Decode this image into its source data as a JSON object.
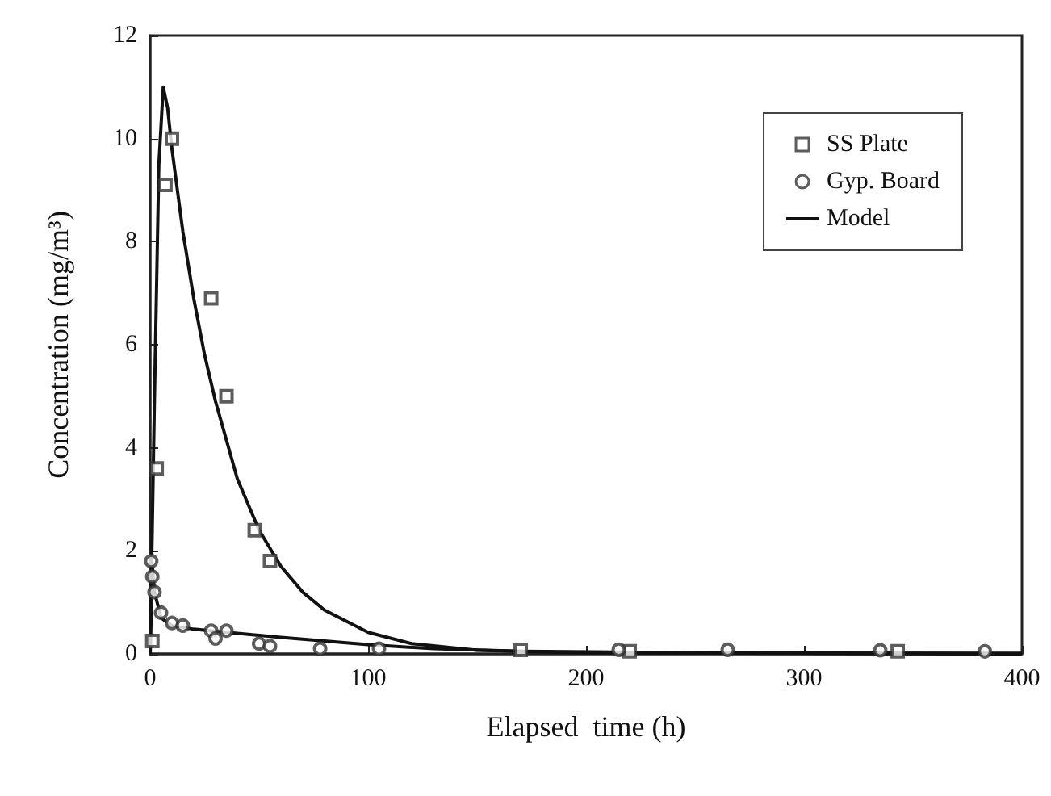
{
  "chart_data": {
    "type": "scatter",
    "xlabel": "Elapsed  time (h)",
    "ylabel": "Concentration (mg/m³)",
    "xlim": [
      0,
      400
    ],
    "xticks": [
      0,
      100,
      200,
      300,
      400
    ],
    "ylim": [
      0,
      12
    ],
    "yticks": [
      0,
      2,
      4,
      6,
      8,
      10,
      12
    ],
    "grid": false,
    "legend": "top right",
    "series": [
      {
        "name": "SS Plate",
        "marker": "square",
        "color": "#333333",
        "x": [
          1,
          3,
          7,
          10,
          28,
          35,
          48,
          55,
          170,
          220,
          343
        ],
        "values": [
          0.25,
          3.6,
          9.1,
          10.0,
          6.9,
          5.0,
          2.4,
          1.8,
          0.08,
          0.05,
          0.05
        ]
      },
      {
        "name": "Gyp. Board",
        "marker": "circle",
        "color": "#333333",
        "x": [
          0.5,
          1,
          2,
          5,
          10,
          15,
          28,
          30,
          35,
          50,
          55,
          78,
          105,
          215,
          265,
          335,
          383
        ],
        "values": [
          1.8,
          1.5,
          1.2,
          0.8,
          0.6,
          0.55,
          0.45,
          0.3,
          0.45,
          0.2,
          0.15,
          0.1,
          0.1,
          0.08,
          0.08,
          0.07,
          0.05
        ]
      },
      {
        "name": "Model",
        "type": "line",
        "marker": "none",
        "color": "#111111",
        "x": [
          0,
          2,
          4,
          6,
          8,
          10,
          15,
          20,
          25,
          30,
          40,
          50,
          60,
          70,
          80,
          100,
          120,
          150,
          200,
          300,
          400
        ],
        "values": [
          0,
          5,
          9.5,
          11,
          10.6,
          9.8,
          8.2,
          6.9,
          5.8,
          4.9,
          3.4,
          2.4,
          1.7,
          1.2,
          0.85,
          0.42,
          0.2,
          0.07,
          0.02,
          0.01,
          0
        ]
      },
      {
        "type": "line",
        "marker": "none",
        "color": "#111111",
        "x": [
          0,
          1,
          2,
          5,
          10,
          20,
          40,
          60,
          80,
          100,
          130,
          170,
          250,
          400
        ],
        "values": [
          0,
          1.7,
          1.2,
          0.7,
          0.55,
          0.48,
          0.4,
          0.32,
          0.25,
          0.18,
          0.1,
          0.05,
          0.02,
          0.01
        ]
      }
    ]
  }
}
